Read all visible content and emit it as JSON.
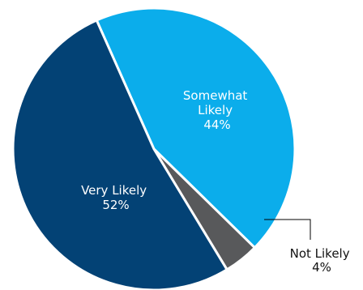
{
  "chart_data": {
    "type": "pie",
    "title": "",
    "slices": [
      {
        "key": "somewhat",
        "label_lines": [
          "Somewhat",
          "Likely"
        ],
        "value_label": "44%",
        "value": 44,
        "color": "#0BADEB"
      },
      {
        "key": "not",
        "label_lines": [
          "Not Likely"
        ],
        "value_label": "4%",
        "value": 4,
        "color": "#58595B"
      },
      {
        "key": "very",
        "label_lines": [
          "Very Likely"
        ],
        "value_label": "52%",
        "value": 52,
        "color": "#034275"
      }
    ],
    "legend": "none",
    "label_position": "inside, except small slice labeled outside with leader line at bottom-right"
  }
}
